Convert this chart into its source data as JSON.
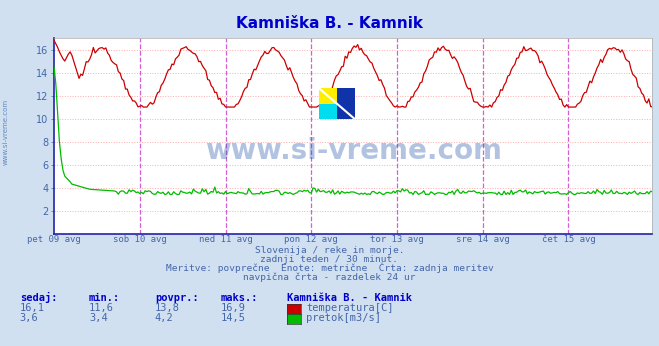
{
  "title": "Kamniška B. - Kamnik",
  "title_color": "#0000cc",
  "bg_color": "#d0e0f0",
  "plot_bg_color": "#ffffff",
  "grid_h_color": "#ffaaaa",
  "grid_v_color": "#ddbbdd",
  "text_color": "#4466aa",
  "ylim": [
    0,
    17.0
  ],
  "yticks": [
    2,
    4,
    6,
    8,
    10,
    12,
    14,
    16
  ],
  "temp_color": "#cc0000",
  "flow_color": "#00bb00",
  "vline_color": "#cc44cc",
  "border_color": "#2222aa",
  "x_labels": [
    "pet 09 avg",
    "sob 10 avg",
    "ned 11 avg",
    "pon 12 avg",
    "tor 13 avg",
    "sre 14 avg",
    "čet 15 avg"
  ],
  "subtitle_lines": [
    "Slovenija / reke in morje.",
    "zadnji teden / 30 minut.",
    "Meritve: povprečne  Enote: metrične  Črta: zadnja meritev",
    "navpična črta - razdelek 24 ur"
  ],
  "table_headers": [
    "sedaj:",
    "min.:",
    "povpr.:",
    "maks.:",
    "Kamniška B. - Kamnik"
  ],
  "table_rows": [
    [
      "16,1",
      "11,6",
      "13,8",
      "16,9",
      "temperatura[C]",
      "#cc0000"
    ],
    [
      "3,6",
      "3,4",
      "4,2",
      "14,5",
      "pretok[m3/s]",
      "#00bb00"
    ]
  ],
  "watermark_text": "www.si-vreme.com",
  "watermark_color": "#2255aa",
  "watermark_alpha": 0.35,
  "side_watermark": "www.si-vreme.com",
  "side_watermark_color": "#6688bb",
  "n_points": 336,
  "logo_colors": [
    "#ffee00",
    "#00ccee",
    "#0000cc"
  ]
}
